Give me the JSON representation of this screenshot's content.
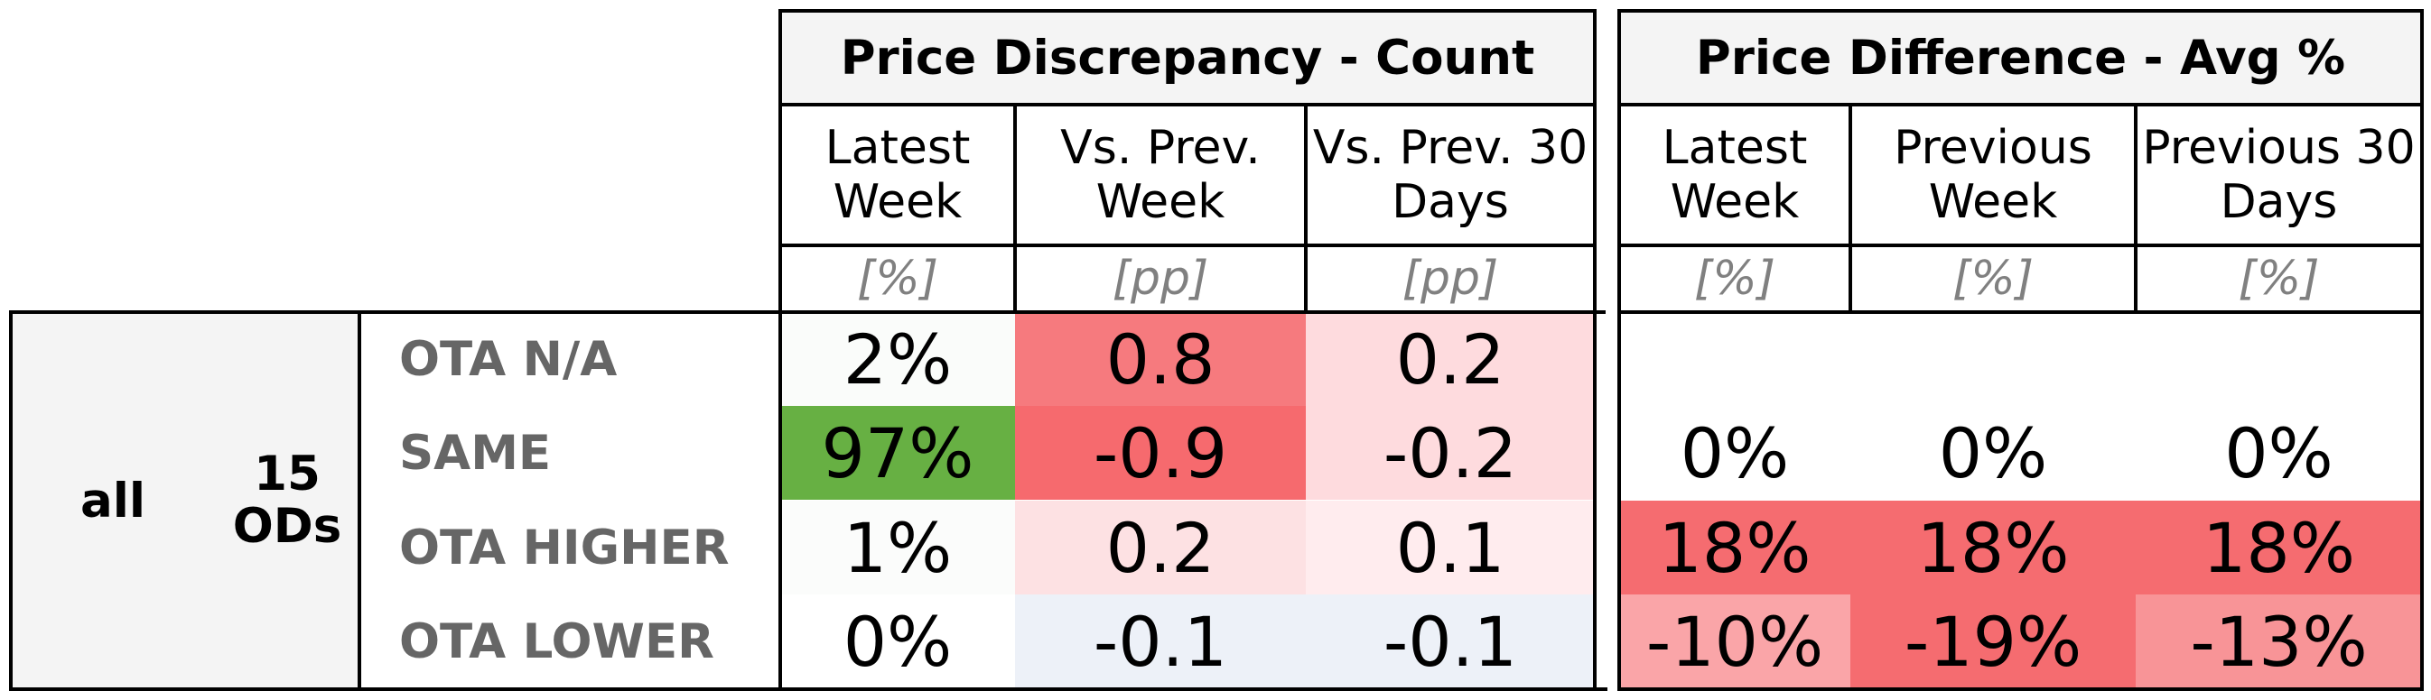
{
  "chart_data": {
    "type": "table",
    "group": {
      "level1": "all",
      "level2": "15 ODs"
    },
    "rows": [
      "OTA N/A",
      "SAME",
      "OTA HIGHER",
      "OTA LOWER"
    ],
    "sections": [
      {
        "title": "Price Discrepancy - Count",
        "columns": [
          {
            "header": "Latest Week",
            "unit": "[%]"
          },
          {
            "header": "Vs. Prev. Week",
            "unit": "[pp]"
          },
          {
            "header": "Vs. Prev. 30 Days",
            "unit": "[pp]"
          }
        ],
        "values": [
          [
            "2%",
            "0.8",
            "0.2"
          ],
          [
            "97%",
            "-0.9",
            "-0.2"
          ],
          [
            "1%",
            "0.2",
            "0.1"
          ],
          [
            "0%",
            "-0.1",
            "-0.1"
          ]
        ],
        "colors": [
          [
            "#fafcfa",
            "#f67a7e",
            "#fedbde"
          ],
          [
            "#67b043",
            "#f66a6e",
            "#fedbde"
          ],
          [
            "#fbfcfb",
            "#fde1e3",
            "#ffecee"
          ],
          [
            "#ffffff",
            "#edf1f8",
            "#edf1f8"
          ]
        ]
      },
      {
        "title": "Price Difference - Avg %",
        "columns": [
          {
            "header": "Latest Week",
            "unit": "[%]"
          },
          {
            "header": "Previous Week",
            "unit": "[%]"
          },
          {
            "header": "Previous 30 Days",
            "unit": "[%]"
          }
        ],
        "values": [
          [
            "",
            "",
            ""
          ],
          [
            "0%",
            "0%",
            "0%"
          ],
          [
            "18%",
            "18%",
            "18%"
          ],
          [
            "-10%",
            "-19%",
            "-13%"
          ]
        ],
        "colors": [
          [
            "#ffffff",
            "#ffffff",
            "#ffffff"
          ],
          [
            "#ffffff",
            "#ffffff",
            "#ffffff"
          ],
          [
            "#f56c70",
            "#f56c70",
            "#f56c70"
          ],
          [
            "#faa5a8",
            "#f56c70",
            "#f89497"
          ]
        ]
      }
    ]
  }
}
